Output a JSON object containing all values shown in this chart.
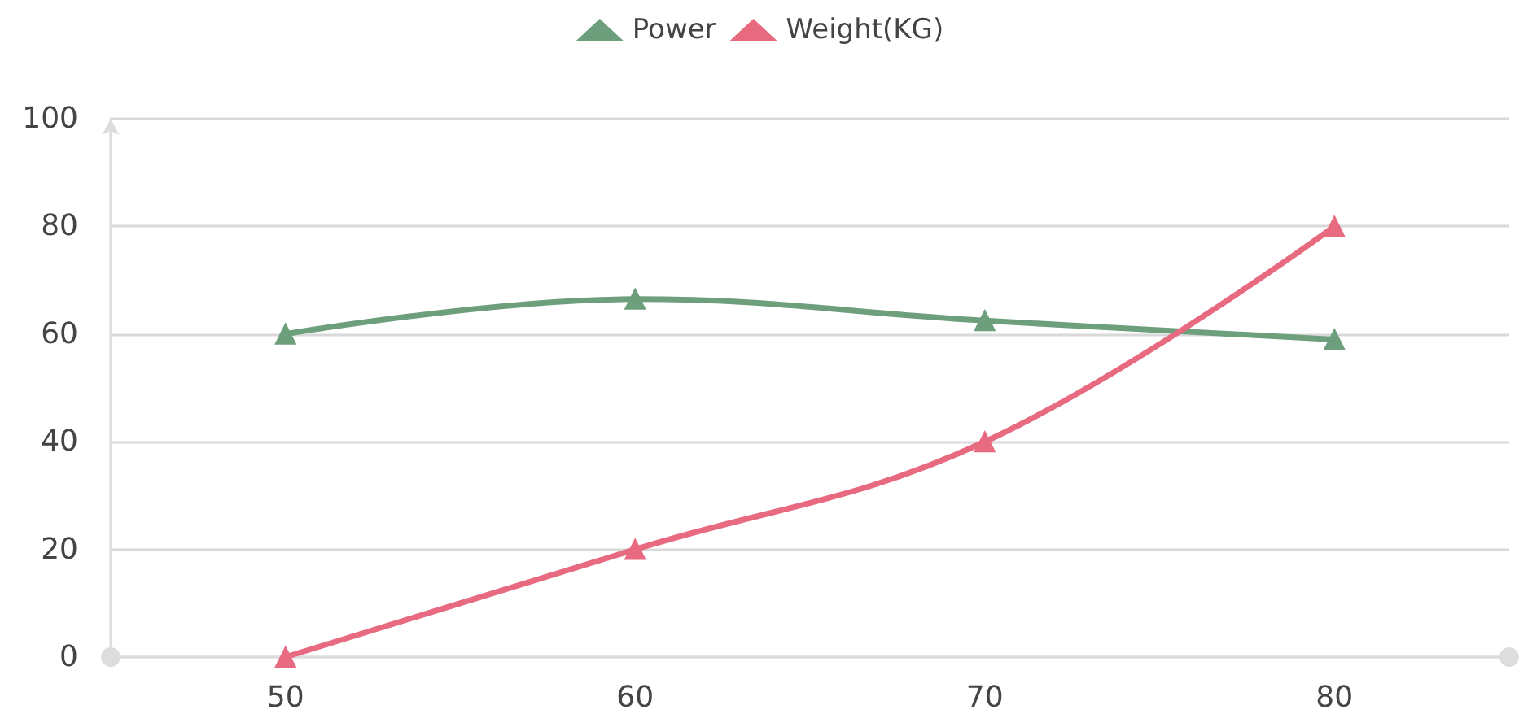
{
  "chart_data": {
    "type": "line",
    "x": [
      50,
      60,
      70,
      80
    ],
    "series": [
      {
        "name": "Power",
        "color": "#6d9f7c",
        "values": [
          60,
          66.5,
          62.5,
          59
        ]
      },
      {
        "name": "Weight(KG)",
        "color": "#e86a80",
        "values": [
          0,
          20,
          40,
          80
        ]
      }
    ],
    "xlim": [
      45,
      85
    ],
    "xticks": [
      50,
      60,
      70,
      80
    ],
    "ylim": [
      0,
      100
    ],
    "yticks": [
      0,
      20,
      40,
      60,
      80,
      100
    ],
    "grid": "y",
    "legend": "top",
    "marker": "triangle",
    "line_style": "solid"
  }
}
